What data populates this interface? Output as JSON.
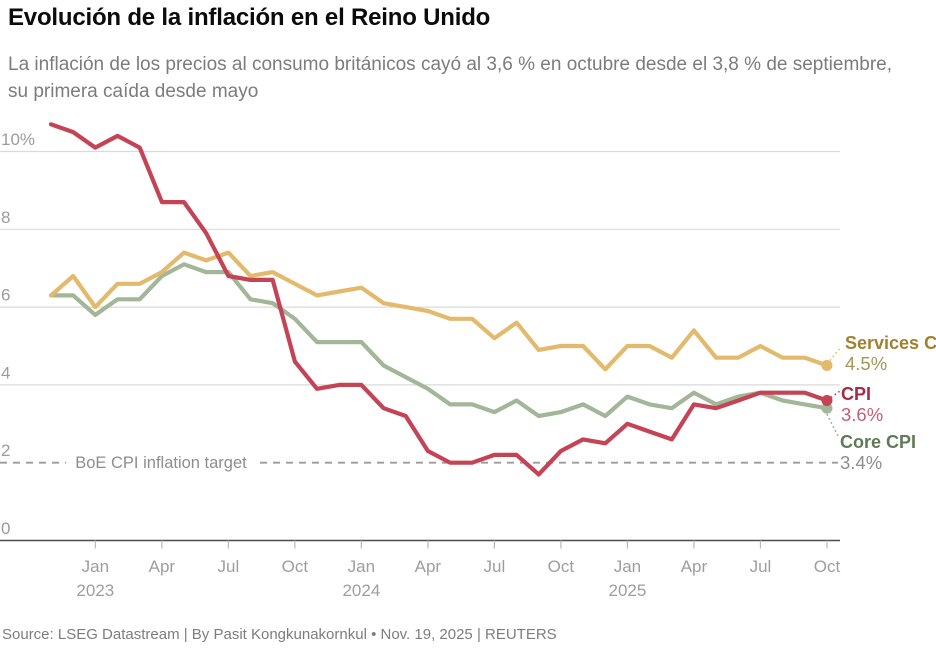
{
  "header": {
    "title": "Evolución de la inflación en el Reino Unido",
    "subtitle": "La inflación de los precios al consumo británicos cayó al 3,6 % en octubre desde el 3,8 % de septiembre, su primera caída desde mayo"
  },
  "footer": {
    "source": "Source: LSEG Datastream | By Pasit Kongkunakornkul • Nov. 19, 2025 | REUTERS"
  },
  "chart_data": {
    "type": "line",
    "title": "Evolución de la inflación en el Reino Unido",
    "unit": "%",
    "ylim": [
      0,
      10.8
    ],
    "grid": true,
    "x": [
      "Nov 2022",
      "Dec 2022",
      "Jan 2023",
      "Feb 2023",
      "Mar 2023",
      "Apr 2023",
      "May 2023",
      "Jun 2023",
      "Jul 2023",
      "Aug 2023",
      "Sep 2023",
      "Oct 2023",
      "Nov 2023",
      "Dec 2023",
      "Jan 2024",
      "Feb 2024",
      "Mar 2024",
      "Apr 2024",
      "May 2024",
      "Jun 2024",
      "Jul 2024",
      "Aug 2024",
      "Sep 2024",
      "Oct 2024",
      "Nov 2024",
      "Dec 2024",
      "Jan 2025",
      "Feb 2025",
      "Mar 2025",
      "Apr 2025",
      "May 2025",
      "Jun 2025",
      "Jul 2025",
      "Aug 2025",
      "Sep 2025",
      "Oct 2025"
    ],
    "series": [
      {
        "name": "Core CPI",
        "end_value_label": "3.4%",
        "end_value": 3.4,
        "color": "#a2b797",
        "label_color": "#5f7b55",
        "value_color": "#8e8e8e",
        "values": [
          6.3,
          6.3,
          5.8,
          6.2,
          6.2,
          6.8,
          7.1,
          6.9,
          6.9,
          6.2,
          6.1,
          5.7,
          5.1,
          5.1,
          5.1,
          4.5,
          4.2,
          3.9,
          3.5,
          3.5,
          3.3,
          3.6,
          3.2,
          3.3,
          3.5,
          3.2,
          3.7,
          3.5,
          3.4,
          3.8,
          3.5,
          3.7,
          3.8,
          3.6,
          3.5,
          3.4
        ]
      },
      {
        "name": "Services CPI",
        "end_value_label": "4.5%",
        "end_value": 4.5,
        "color": "#e3ba6c",
        "label_color": "#a0812f",
        "value_color": "#a59658",
        "values": [
          6.3,
          6.8,
          6.0,
          6.6,
          6.6,
          6.9,
          7.4,
          7.2,
          7.4,
          6.8,
          6.9,
          6.6,
          6.3,
          6.4,
          6.5,
          6.1,
          6.0,
          5.9,
          5.7,
          5.7,
          5.2,
          5.6,
          4.9,
          5.0,
          5.0,
          4.4,
          5.0,
          5.0,
          4.7,
          5.4,
          4.7,
          4.7,
          5.0,
          4.7,
          4.7,
          4.5
        ]
      },
      {
        "name": "CPI",
        "end_value_label": "3.6%",
        "end_value": 3.6,
        "color": "#c44355",
        "label_color": "#a22c45",
        "value_color": "#c45e72",
        "values": [
          10.7,
          10.5,
          10.1,
          10.4,
          10.1,
          8.7,
          8.7,
          7.9,
          6.8,
          6.7,
          6.7,
          4.6,
          3.9,
          4.0,
          4.0,
          3.4,
          3.2,
          2.3,
          2.0,
          2.0,
          2.2,
          2.2,
          1.7,
          2.3,
          2.6,
          2.5,
          3.0,
          2.8,
          2.6,
          3.5,
          3.4,
          3.6,
          3.8,
          3.8,
          3.8,
          3.6
        ]
      }
    ],
    "target_line": {
      "value": 2,
      "label": "BoE CPI inflation target",
      "color": "#9c9c9c",
      "label_color": "#8e8e8e"
    },
    "yticks": [
      {
        "value": 10,
        "label": "10%",
        "line": "grid"
      },
      {
        "value": 8,
        "label": "8",
        "line": "grid"
      },
      {
        "value": 6,
        "label": "6",
        "line": "grid"
      },
      {
        "value": 4,
        "label": "4",
        "line": "grid"
      },
      {
        "value": 2,
        "label": "2",
        "line": "target"
      },
      {
        "value": 0,
        "label": "0",
        "line": "axis"
      }
    ],
    "xticks": [
      {
        "index": 2,
        "month": "Jan",
        "year": "2023"
      },
      {
        "index": 5,
        "month": "Apr"
      },
      {
        "index": 8,
        "month": "Jul"
      },
      {
        "index": 11,
        "month": "Oct"
      },
      {
        "index": 14,
        "month": "Jan",
        "year": "2024"
      },
      {
        "index": 17,
        "month": "Apr"
      },
      {
        "index": 20,
        "month": "Jul"
      },
      {
        "index": 23,
        "month": "Oct"
      },
      {
        "index": 26,
        "month": "Jan",
        "year": "2025"
      },
      {
        "index": 29,
        "month": "Apr"
      },
      {
        "index": 32,
        "month": "Jul"
      },
      {
        "index": 35,
        "month": "Oct"
      }
    ],
    "legend_position": "right-edge-labels"
  }
}
